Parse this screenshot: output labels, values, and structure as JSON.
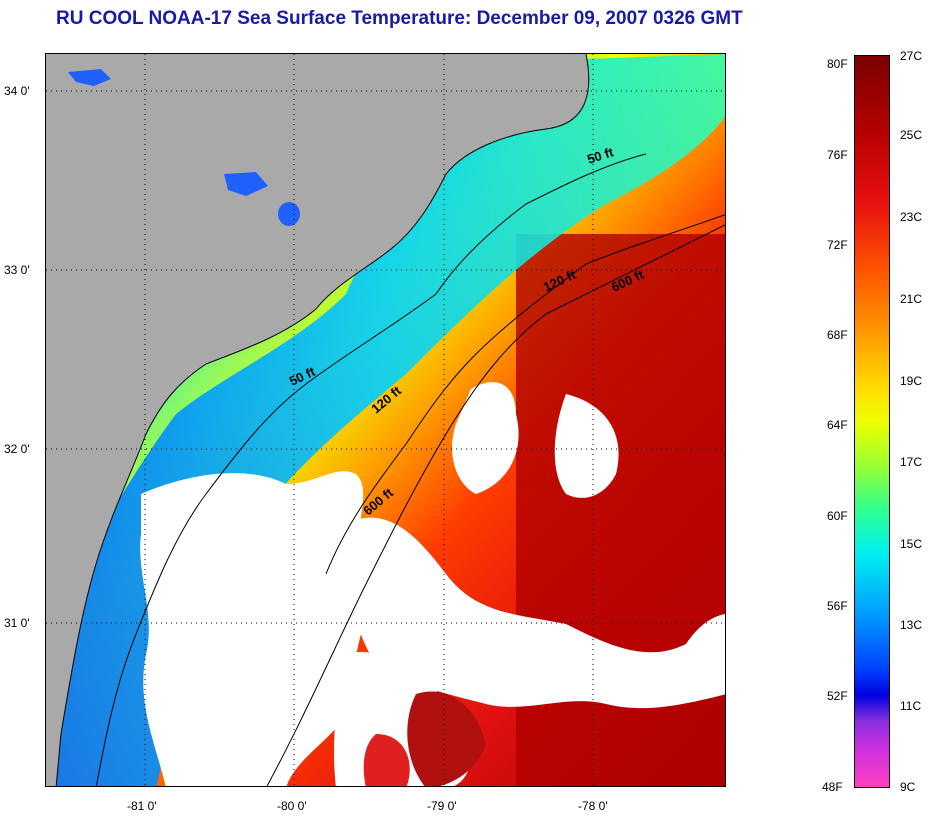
{
  "title": "RU COOL  NOAA-17  Sea Surface Temperature:  December 09, 2007 0326 GMT",
  "axes": {
    "latitude_labels": [
      "34 0'",
      "33 0'",
      "32 0'",
      "31 0'"
    ],
    "longitude_labels": [
      "-81 0'",
      "-80 0'",
      "-79 0'",
      "-78 0'"
    ]
  },
  "isobaths": [
    "50 ft",
    "120 ft",
    "600 ft",
    "50 ft",
    "120 ft",
    "600 ft"
  ],
  "colorbar": {
    "fahrenheit": [
      "80F",
      "76F",
      "72F",
      "68F",
      "64F",
      "60F",
      "56F",
      "52F",
      "48F"
    ],
    "celsius": [
      "27C",
      "25C",
      "23C",
      "21C",
      "19C",
      "17C",
      "15C",
      "13C",
      "11C",
      "9C"
    ]
  },
  "colors": {
    "title": "#1a1aa8",
    "land": "#a9a9a9",
    "cloud": "#ffffff"
  }
}
